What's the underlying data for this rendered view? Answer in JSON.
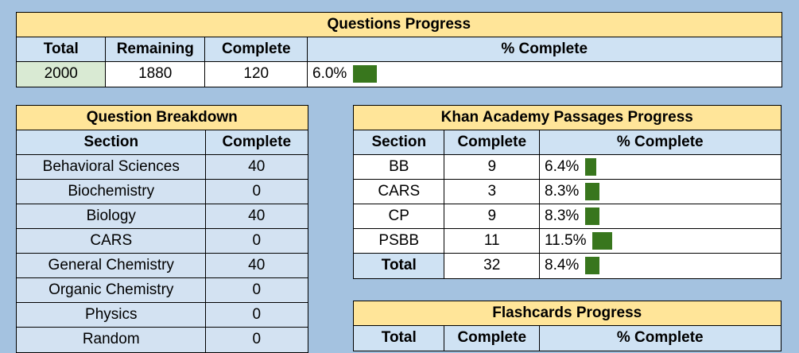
{
  "questions_progress": {
    "title": "Questions Progress",
    "columns": [
      "Total",
      "Remaining",
      "Complete",
      "% Complete"
    ],
    "rows": [
      [
        2000,
        1880,
        120,
        {
          "value": 6.0,
          "label": "6.0%"
        }
      ]
    ]
  },
  "question_breakdown": {
    "title": "Question Breakdown",
    "columns": [
      "Section",
      "Complete"
    ],
    "rows": [
      [
        "Behavioral Sciences",
        40
      ],
      [
        "Biochemistry",
        0
      ],
      [
        "Biology",
        40
      ],
      [
        "CARS",
        0
      ],
      [
        "General Chemistry",
        40
      ],
      [
        "Organic Chemistry",
        0
      ],
      [
        "Physics",
        0
      ],
      [
        "Random",
        0
      ]
    ]
  },
  "khan_academy_progress": {
    "title": "Khan Academy Passages Progress",
    "columns": [
      "Section",
      "Complete",
      "% Complete"
    ],
    "rows": [
      [
        "BB",
        9,
        {
          "value": 6.4,
          "label": "6.4%"
        }
      ],
      [
        "CARS",
        3,
        {
          "value": 8.3,
          "label": "8.3%"
        }
      ],
      [
        "CP",
        9,
        {
          "value": 8.3,
          "label": "8.3%"
        }
      ],
      [
        "PSBB",
        11,
        {
          "value": 11.5,
          "label": "11.5%"
        }
      ],
      [
        "Total",
        32,
        {
          "value": 8.4,
          "label": "8.4%"
        }
      ]
    ]
  },
  "flashcards_progress": {
    "title": "Flashcards Progress",
    "columns": [
      "Total",
      "Complete",
      "% Complete"
    ]
  }
}
